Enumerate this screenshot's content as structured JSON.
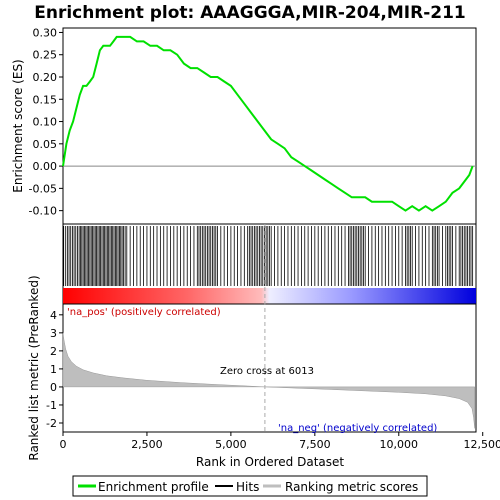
{
  "chart_data": {
    "type": "line",
    "title": "Enrichment plot: AAAGGGA,MIR-204,MIR-211",
    "panels": {
      "enrichment": {
        "ylabel": "Enrichment score (ES)",
        "ylim": [
          -0.13,
          0.31
        ],
        "yticks": [
          -0.1,
          -0.05,
          0.0,
          0.05,
          0.1,
          0.15,
          0.2,
          0.25,
          0.3
        ],
        "ytick_labels": [
          "-0.10",
          "-0.05",
          "0.00",
          "0.05",
          "0.10",
          "0.15",
          "0.20",
          "0.25",
          "0.30"
        ],
        "series": [
          {
            "name": "Enrichment profile",
            "color": "#00e000",
            "x": [
              0,
              100,
              200,
              300,
              400,
              500,
              600,
              700,
              800,
              900,
              1000,
              1100,
              1200,
              1300,
              1400,
              1500,
              1600,
              1700,
              1800,
              1900,
              2000,
              2200,
              2400,
              2600,
              2800,
              3000,
              3200,
              3400,
              3600,
              3800,
              4000,
              4200,
              4400,
              4600,
              4800,
              5000,
              5200,
              5400,
              5600,
              5800,
              6000,
              6200,
              6400,
              6600,
              6800,
              7000,
              7200,
              7400,
              7600,
              7800,
              8000,
              8200,
              8400,
              8600,
              8800,
              9000,
              9200,
              9400,
              9600,
              9800,
              10000,
              10200,
              10400,
              10600,
              10800,
              11000,
              11200,
              11400,
              11600,
              11800,
              12000,
              12100,
              12200
            ],
            "y": [
              0.0,
              0.05,
              0.08,
              0.1,
              0.13,
              0.16,
              0.18,
              0.18,
              0.19,
              0.2,
              0.23,
              0.26,
              0.27,
              0.27,
              0.27,
              0.28,
              0.29,
              0.29,
              0.29,
              0.29,
              0.29,
              0.28,
              0.28,
              0.27,
              0.27,
              0.26,
              0.26,
              0.25,
              0.23,
              0.22,
              0.22,
              0.21,
              0.2,
              0.2,
              0.19,
              0.18,
              0.16,
              0.14,
              0.12,
              0.1,
              0.08,
              0.06,
              0.05,
              0.04,
              0.02,
              0.01,
              0.0,
              -0.01,
              -0.02,
              -0.03,
              -0.04,
              -0.05,
              -0.06,
              -0.07,
              -0.07,
              -0.07,
              -0.08,
              -0.08,
              -0.08,
              -0.08,
              -0.09,
              -0.1,
              -0.09,
              -0.1,
              -0.09,
              -0.1,
              -0.09,
              -0.08,
              -0.06,
              -0.05,
              -0.03,
              -0.02,
              0.0
            ]
          }
        ]
      },
      "hits": {
        "positions": [
          20,
          80,
          130,
          180,
          230,
          280,
          330,
          380,
          430,
          480,
          520,
          560,
          600,
          640,
          680,
          720,
          760,
          800,
          840,
          880,
          920,
          960,
          1000,
          1040,
          1080,
          1120,
          1160,
          1200,
          1240,
          1280,
          1320,
          1360,
          1400,
          1440,
          1480,
          1520,
          1560,
          1600,
          1640,
          1680,
          1720,
          1760,
          1800,
          1850,
          1900,
          2000,
          2100,
          2200,
          2300,
          2400,
          2500,
          2600,
          2700,
          2800,
          2900,
          3000,
          3100,
          3200,
          3300,
          3400,
          3500,
          3600,
          3700,
          3800,
          3900,
          4000,
          4050,
          4100,
          4150,
          4200,
          4250,
          4300,
          4350,
          4400,
          4450,
          4500,
          4550,
          4600,
          4700,
          4800,
          4900,
          5000,
          5100,
          5200,
          5300,
          5400,
          5500,
          5550,
          5600,
          5650,
          5700,
          5750,
          5800,
          5850,
          5900,
          5950,
          6000,
          6050,
          6100,
          6150,
          6200,
          6300,
          6400,
          6500,
          6600,
          6700,
          6800,
          6900,
          7000,
          7100,
          7200,
          7300,
          7400,
          7500,
          7600,
          7700,
          7800,
          7900,
          8000,
          8100,
          8200,
          8300,
          8400,
          8500,
          8550,
          8600,
          8650,
          8700,
          8750,
          8800,
          8850,
          8900,
          8950,
          9000,
          9100,
          9200,
          9300,
          9400,
          9500,
          9600,
          9700,
          9800,
          9900,
          10000,
          10100,
          10200,
          10250,
          10300,
          10350,
          10400,
          10500,
          10600,
          10700,
          10800,
          10900,
          11000,
          11050,
          11100,
          11150,
          11200,
          11300,
          11400,
          11450,
          11500,
          11550,
          11600,
          11700,
          11800,
          11850,
          11900,
          11950,
          12000,
          12050,
          12100,
          12150,
          12200
        ]
      },
      "ranked_metric": {
        "ylabel": "Ranked list metric (PreRanked)",
        "ylim": [
          -2.5,
          4.6
        ],
        "yticks": [
          -2,
          -1,
          0,
          1,
          2,
          3,
          4
        ],
        "ytick_labels": [
          "-2",
          "-1",
          "0",
          "1",
          "2",
          "3",
          "4"
        ],
        "x": [
          0,
          30,
          80,
          150,
          250,
          400,
          600,
          900,
          1300,
          1800,
          2500,
          3500,
          4500,
          5500,
          6013,
          7000,
          8000,
          9000,
          10000,
          10800,
          11400,
          11800,
          12050,
          12180,
          12230,
          12260
        ],
        "y": [
          3.0,
          2.6,
          2.1,
          1.7,
          1.4,
          1.15,
          0.95,
          0.78,
          0.62,
          0.5,
          0.37,
          0.24,
          0.14,
          0.05,
          0.0,
          -0.07,
          -0.14,
          -0.22,
          -0.3,
          -0.38,
          -0.5,
          -0.65,
          -0.85,
          -1.2,
          -1.7,
          -2.3
        ],
        "fill_color": "#bebebe",
        "zero_cross_label": "Zero cross at 6013",
        "zero_cross_rank": 6013,
        "pos_label": "'na_pos' (positively correlated)",
        "neg_label": "'na_neg' (negatively correlated)"
      }
    },
    "xlabel": "Rank in Ordered Dataset",
    "xlim": [
      0,
      12300
    ],
    "xticks": [
      0,
      2500,
      5000,
      7500,
      10000,
      12500
    ],
    "xtick_labels": [
      "0",
      "2,500",
      "5,000",
      "7,500",
      "10,000",
      "12,500"
    ],
    "legend": {
      "placement": "bottom",
      "entries": [
        {
          "label": "Enrichment profile",
          "color": "#00e000"
        },
        {
          "label": "Hits",
          "color": "#000000"
        },
        {
          "label": "Ranking metric scores",
          "color": "#bebebe"
        }
      ]
    }
  }
}
